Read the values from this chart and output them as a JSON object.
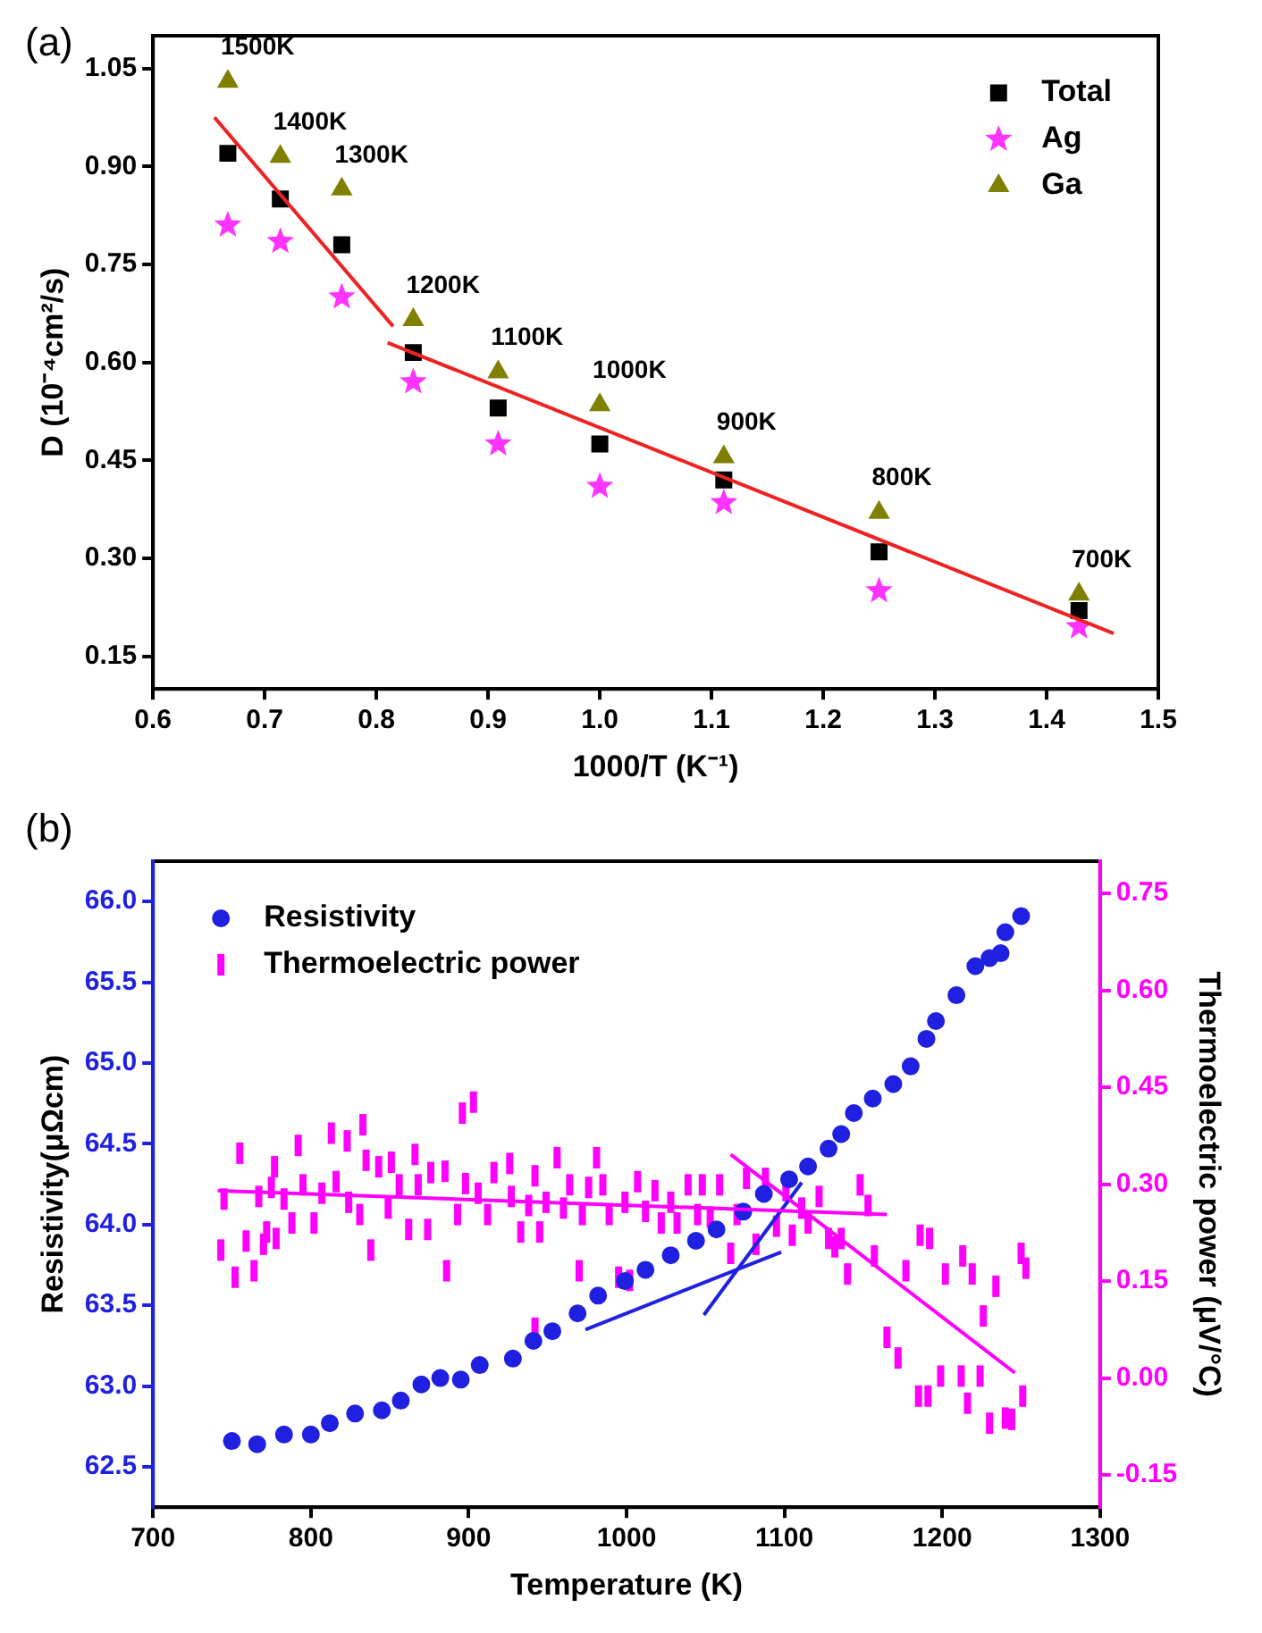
{
  "chart_data": [
    {
      "type": "scatter",
      "title": "(a)",
      "xlabel": "1000/T (K⁻¹)",
      "ylabel": "D (10⁻⁴cm²/s)",
      "xlim": [
        0.6,
        1.5
      ],
      "ylim": [
        0.1,
        1.1
      ],
      "xticks": [
        0.6,
        0.7,
        0.8,
        0.9,
        {
          "value": 1.0,
          "label": "1.0"
        },
        1.1,
        1.2,
        1.3,
        1.4,
        1.5
      ],
      "yticks": [
        {
          "value": 0.15,
          "label": "0.15"
        },
        {
          "value": 0.3,
          "label": "0.30"
        },
        {
          "value": 0.45,
          "label": "0.45"
        },
        {
          "value": 0.6,
          "label": "0.60"
        },
        {
          "value": 0.75,
          "label": "0.75"
        },
        {
          "value": 0.9,
          "label": "0.90"
        },
        {
          "value": 1.05,
          "label": "1.05"
        }
      ],
      "grid": false,
      "legend": "top right",
      "series": [
        {
          "name": "Total",
          "color": "#000000",
          "marker": "square",
          "x": [
            0.667,
            0.714,
            0.769,
            0.833,
            0.909,
            1.0,
            1.111,
            1.25,
            1.429
          ],
          "values": [
            0.92,
            0.85,
            0.78,
            0.615,
            0.53,
            0.475,
            0.42,
            0.31,
            0.22
          ]
        },
        {
          "name": "Ag",
          "color": "#ff33ff",
          "marker": "star",
          "x": [
            0.667,
            0.714,
            0.769,
            0.833,
            0.909,
            1.0,
            1.111,
            1.25,
            1.429
          ],
          "values": [
            0.81,
            0.785,
            0.7,
            0.57,
            0.475,
            0.41,
            0.385,
            0.25,
            0.195
          ]
        },
        {
          "name": "Ga",
          "color": "#808000",
          "marker": "triangle",
          "x": [
            0.667,
            0.714,
            0.769,
            0.833,
            0.909,
            1.0,
            1.111,
            1.25,
            1.429
          ],
          "values": [
            1.03,
            0.915,
            0.865,
            0.665,
            0.585,
            0.535,
            0.455,
            0.37,
            0.245
          ]
        },
        {
          "type": "line",
          "color": "#ee2222",
          "marker": "none",
          "x": [
            0.655,
            0.815
          ],
          "values": [
            0.975,
            0.655
          ]
        },
        {
          "type": "line",
          "color": "#ee2222",
          "marker": "none",
          "x": [
            0.81,
            1.46
          ],
          "values": [
            0.63,
            0.185
          ]
        }
      ],
      "annotations": [
        {
          "text": "1500K",
          "x": 0.667,
          "y": 1.03
        },
        {
          "text": "1400K",
          "x": 0.714,
          "y": 0.915
        },
        {
          "text": "1300K",
          "x": 0.769,
          "y": 0.865
        },
        {
          "text": "1200K",
          "x": 0.833,
          "y": 0.665
        },
        {
          "text": "1100K",
          "x": 0.909,
          "y": 0.585
        },
        {
          "text": "1000K",
          "x": 1.0,
          "y": 0.535
        },
        {
          "text": "900K",
          "x": 1.111,
          "y": 0.455
        },
        {
          "text": "800K",
          "x": 1.25,
          "y": 0.37
        },
        {
          "text": "700K",
          "x": 1.429,
          "y": 0.245
        }
      ]
    },
    {
      "type": "scatter",
      "title": "(b)",
      "xlabel": "Temperature (K)",
      "ylabel": "Resistivity(μΩcm)",
      "y2label": "Thermoelectric power (μV/°C)",
      "xlim": [
        700,
        1300
      ],
      "ylim": [
        62.25,
        66.25
      ],
      "y2lim": [
        -0.2,
        0.8
      ],
      "xticks": [
        700,
        800,
        900,
        1000,
        1100,
        1200,
        1300
      ],
      "yticks": [
        62.5,
        {
          "value": 63.0,
          "label": "63.0"
        },
        63.5,
        {
          "value": 64.0,
          "label": "64.0"
        },
        64.5,
        {
          "value": 65.0,
          "label": "65.0"
        },
        65.5,
        {
          "value": 66.0,
          "label": "66.0"
        }
      ],
      "y2ticks": [
        {
          "value": -0.15,
          "label": "-0.15"
        },
        {
          "value": 0.0,
          "label": "0.00"
        },
        {
          "value": 0.15,
          "label": "0.15"
        },
        {
          "value": 0.3,
          "label": "0.30"
        },
        {
          "value": 0.45,
          "label": "0.45"
        },
        {
          "value": 0.6,
          "label": "0.60"
        },
        {
          "value": 0.75,
          "label": "0.75"
        }
      ],
      "grid": false,
      "legend": "top left",
      "series": [
        {
          "name": "Resistivity",
          "color": "#2020e0",
          "marker": "circle",
          "x": [
            750,
            766,
            783,
            800,
            812,
            828,
            845,
            857,
            870,
            882,
            895,
            907,
            928,
            941,
            953,
            969,
            982,
            999,
            1012,
            1028,
            1044,
            1057,
            1074,
            1087,
            1103,
            1115,
            1128,
            1136,
            1144,
            1156,
            1169,
            1180,
            1190,
            1196,
            1209,
            1221,
            1230,
            1237,
            1240,
            1250
          ],
          "values": [
            62.66,
            62.64,
            62.7,
            62.7,
            62.77,
            62.83,
            62.85,
            62.91,
            63.01,
            63.05,
            63.04,
            63.13,
            63.17,
            63.28,
            63.34,
            63.45,
            63.56,
            63.65,
            63.72,
            63.81,
            63.9,
            63.97,
            64.08,
            64.19,
            64.28,
            64.36,
            64.47,
            64.56,
            64.69,
            64.78,
            64.87,
            64.98,
            65.15,
            65.26,
            65.42,
            65.6,
            65.65,
            65.68,
            65.81,
            65.91
          ]
        },
        {
          "name": "Thermoelectric power",
          "color": "#ff00ff",
          "axis": "y2",
          "x": [
            743,
            745,
            752,
            755,
            759,
            764,
            767,
            770,
            772,
            775,
            777,
            778,
            783,
            788,
            792,
            795,
            802,
            807,
            813,
            816,
            823,
            824,
            831,
            833,
            835,
            838,
            843,
            849,
            851,
            856,
            862,
            866,
            868,
            874,
            876,
            885,
            886,
            893,
            896,
            898,
            903,
            906,
            912,
            916,
            926,
            927,
            933,
            938,
            942,
            942,
            945,
            949,
            956,
            960,
            964,
            970,
            972,
            976,
            981,
            985,
            989,
            995,
            999,
            1002,
            1007,
            1012,
            1018,
            1022,
            1028,
            1032,
            1039,
            1045,
            1048,
            1053,
            1059,
            1066,
            1070,
            1076,
            1082,
            1088,
            1095,
            1101,
            1105,
            1111,
            1115,
            1122,
            1128,
            1132,
            1136,
            1140,
            1148,
            1153,
            1157,
            1165,
            1172,
            1177,
            1185,
            1186,
            1191,
            1192,
            1199,
            1202,
            1212,
            1213,
            1216,
            1219,
            1224,
            1226,
            1230,
            1234,
            1240,
            1244,
            1250,
            1251,
            1253
          ],
          "values": [
            0.198,
            0.277,
            0.156,
            0.348,
            0.212,
            0.166,
            0.281,
            0.207,
            0.226,
            0.295,
            0.327,
            0.216,
            0.277,
            0.24,
            0.36,
            0.299,
            0.24,
            0.286,
            0.379,
            0.304,
            0.367,
            0.272,
            0.253,
            0.392,
            0.337,
            0.198,
            0.327,
            0.263,
            0.334,
            0.299,
            0.23,
            0.346,
            0.299,
            0.23,
            0.318,
            0.32,
            0.166,
            0.253,
            0.41,
            0.301,
            0.427,
            0.286,
            0.253,
            0.318,
            0.332,
            0.281,
            0.226,
            0.267,
            0.313,
            0.077,
            0.226,
            0.272,
            0.341,
            0.263,
            0.299,
            0.166,
            0.253,
            0.295,
            0.341,
            0.299,
            0.253,
            0.156,
            0.272,
            0.151,
            0.304,
            0.258,
            0.29,
            0.24,
            0.272,
            0.24,
            0.299,
            0.253,
            0.299,
            0.249,
            0.299,
            0.193,
            0.253,
            0.309,
            0.207,
            0.309,
            0.235,
            0.29,
            0.221,
            0.263,
            0.24,
            0.281,
            0.216,
            0.203,
            0.216,
            0.161,
            0.299,
            0.267,
            0.189,
            0.063,
            0.031,
            0.166,
            -0.028,
            0.221,
            -0.028,
            0.216,
            0.003,
            0.161,
            0.003,
            0.189,
            -0.039,
            0.161,
            0.003,
            0.096,
            -0.07,
            0.142,
            -0.062,
            -0.064,
            0.193,
            -0.028,
            0.17
          ]
        },
        {
          "type": "line",
          "color": "#ff00ff",
          "axis": "y2",
          "marker": "none",
          "x": [
            741,
            1165
          ],
          "values": [
            0.29,
            0.253
          ]
        },
        {
          "type": "line",
          "color": "#ff00ff",
          "axis": "y2",
          "marker": "none",
          "x": [
            1066,
            1246
          ],
          "values": [
            0.346,
            0.008
          ]
        },
        {
          "type": "line",
          "color": "#2020e0",
          "marker": "none",
          "x": [
            974,
            1098
          ],
          "values": [
            63.35,
            63.83
          ]
        },
        {
          "type": "line",
          "color": "#2020e0",
          "marker": "none",
          "x": [
            1049,
            1111
          ],
          "values": [
            63.44,
            64.26
          ]
        }
      ]
    }
  ]
}
